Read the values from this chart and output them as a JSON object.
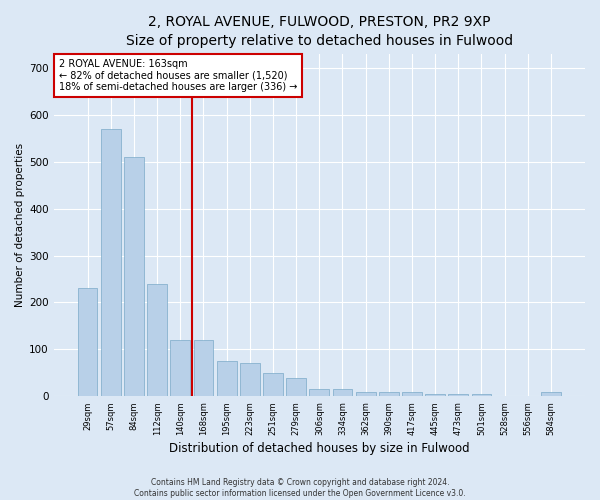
{
  "title1": "2, ROYAL AVENUE, FULWOOD, PRESTON, PR2 9XP",
  "title2": "Size of property relative to detached houses in Fulwood",
  "xlabel": "Distribution of detached houses by size in Fulwood",
  "ylabel": "Number of detached properties",
  "categories": [
    "29sqm",
    "57sqm",
    "84sqm",
    "112sqm",
    "140sqm",
    "168sqm",
    "195sqm",
    "223sqm",
    "251sqm",
    "279sqm",
    "306sqm",
    "334sqm",
    "362sqm",
    "390sqm",
    "417sqm",
    "445sqm",
    "473sqm",
    "501sqm",
    "528sqm",
    "556sqm",
    "584sqm"
  ],
  "values": [
    230,
    570,
    510,
    240,
    120,
    120,
    75,
    70,
    50,
    40,
    15,
    15,
    10,
    10,
    10,
    5,
    5,
    5,
    0,
    0,
    10
  ],
  "bar_color": "#b8d0e8",
  "bar_edge_color": "#7aaac8",
  "vline_x_index": 5,
  "vline_color": "#cc0000",
  "annotation_title": "2 ROYAL AVENUE: 163sqm",
  "annotation_line1": "← 82% of detached houses are smaller (1,520)",
  "annotation_line2": "18% of semi-detached houses are larger (336) →",
  "annotation_box_color": "#ffffff",
  "annotation_box_edge": "#cc0000",
  "ylim": [
    0,
    730
  ],
  "yticks": [
    0,
    100,
    200,
    300,
    400,
    500,
    600,
    700
  ],
  "footer1": "Contains HM Land Registry data © Crown copyright and database right 2024.",
  "footer2": "Contains public sector information licensed under the Open Government Licence v3.0.",
  "bg_color": "#dce8f5",
  "plot_bg_color": "#dce8f5",
  "title1_fontsize": 10,
  "title2_fontsize": 9,
  "xlabel_fontsize": 8.5,
  "ylabel_fontsize": 7.5,
  "xtick_fontsize": 6,
  "ytick_fontsize": 7.5,
  "annotation_fontsize": 7,
  "footer_fontsize": 5.5
}
